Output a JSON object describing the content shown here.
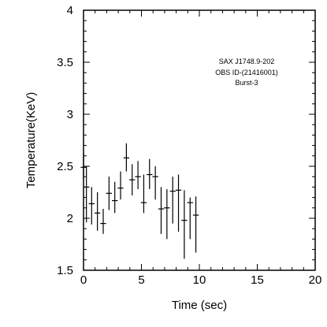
{
  "chart_data": {
    "type": "scatter",
    "title": "",
    "xlabel": "Time (sec)",
    "ylabel": "Temperature(KeV)",
    "xlim": [
      0,
      20
    ],
    "ylim": [
      1.5,
      4
    ],
    "xticks": [
      "0",
      "5",
      "10",
      "15",
      "20"
    ],
    "yticks": [
      "1.5",
      "2",
      "2.5",
      "3",
      "3.5",
      "4"
    ],
    "annotations": [
      "SAX J1748.9-202",
      "OBS ID-(21416001)",
      "Burst-3"
    ],
    "grid": false,
    "points": [
      {
        "x": 0.0,
        "y": 2.49,
        "xerr": 0.25,
        "ylo": 2.38,
        "yhi": 2.62
      },
      {
        "x": 0.25,
        "y": 2.3,
        "xerr": 0.25,
        "ylo": 1.96,
        "yhi": 2.5
      },
      {
        "x": 0.7,
        "y": 2.14,
        "xerr": 0.25,
        "ylo": 1.94,
        "yhi": 2.3
      },
      {
        "x": 1.2,
        "y": 2.05,
        "xerr": 0.25,
        "ylo": 1.88,
        "yhi": 2.25
      },
      {
        "x": 1.7,
        "y": 1.95,
        "xerr": 0.25,
        "ylo": 1.85,
        "yhi": 2.09
      },
      {
        "x": 2.2,
        "y": 2.24,
        "xerr": 0.25,
        "ylo": 2.08,
        "yhi": 2.4
      },
      {
        "x": 2.7,
        "y": 2.17,
        "xerr": 0.25,
        "ylo": 2.05,
        "yhi": 2.35
      },
      {
        "x": 3.2,
        "y": 2.29,
        "xerr": 0.25,
        "ylo": 2.18,
        "yhi": 2.45
      },
      {
        "x": 3.7,
        "y": 2.58,
        "xerr": 0.25,
        "ylo": 2.45,
        "yhi": 2.72
      },
      {
        "x": 4.2,
        "y": 2.37,
        "xerr": 0.25,
        "ylo": 2.22,
        "yhi": 2.52
      },
      {
        "x": 4.7,
        "y": 2.4,
        "xerr": 0.25,
        "ylo": 2.28,
        "yhi": 2.55
      },
      {
        "x": 5.2,
        "y": 2.15,
        "xerr": 0.25,
        "ylo": 2.05,
        "yhi": 2.42
      },
      {
        "x": 5.7,
        "y": 2.42,
        "xerr": 0.25,
        "ylo": 2.28,
        "yhi": 2.57
      },
      {
        "x": 6.2,
        "y": 2.4,
        "xerr": 0.25,
        "ylo": 2.18,
        "yhi": 2.5
      },
      {
        "x": 6.7,
        "y": 2.09,
        "xerr": 0.25,
        "ylo": 1.85,
        "yhi": 2.3
      },
      {
        "x": 7.2,
        "y": 2.1,
        "xerr": 0.25,
        "ylo": 1.8,
        "yhi": 2.28
      },
      {
        "x": 7.7,
        "y": 2.26,
        "xerr": 0.25,
        "ylo": 1.95,
        "yhi": 2.4
      },
      {
        "x": 8.2,
        "y": 2.27,
        "xerr": 0.25,
        "ylo": 1.87,
        "yhi": 2.42
      },
      {
        "x": 8.7,
        "y": 1.98,
        "xerr": 0.25,
        "ylo": 1.61,
        "yhi": 2.27
      },
      {
        "x": 9.2,
        "y": 2.15,
        "xerr": 0.25,
        "ylo": 1.8,
        "yhi": 2.2
      },
      {
        "x": 9.7,
        "y": 2.03,
        "xerr": 0.25,
        "ylo": 1.67,
        "yhi": 2.21
      }
    ]
  }
}
